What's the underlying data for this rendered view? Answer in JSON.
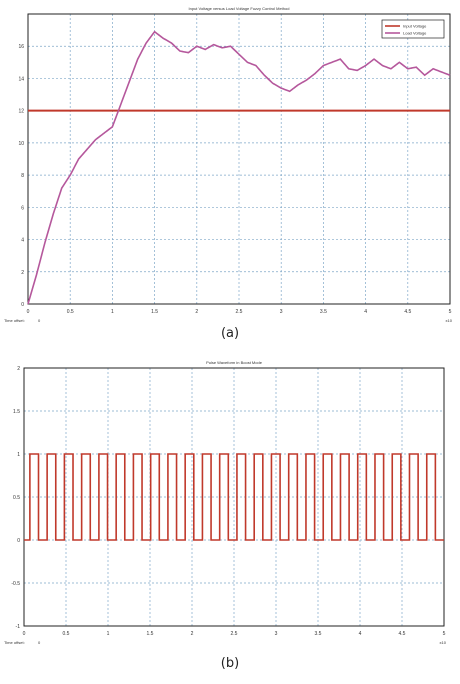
{
  "chart_data": [
    {
      "type": "line",
      "title": "Input Voltage versus Load Voltage Fuzzy Control Method",
      "xlim": [
        0,
        5
      ],
      "ylim": [
        0,
        18
      ],
      "x_exponent_label": "x10",
      "x_ticks": [
        "0",
        "0.5",
        "1",
        "1.5",
        "2",
        "2.5",
        "3",
        "3.5",
        "4",
        "4.5",
        "5"
      ],
      "y_ticks": [
        "0",
        "2",
        "4",
        "6",
        "8",
        "10",
        "12",
        "14",
        "16"
      ],
      "time_offset_label": "Time offset:",
      "time_offset_value": "0",
      "grid": true,
      "legend_position": "top-right",
      "series": [
        {
          "name": "Input Voltage",
          "color": "#c0392b",
          "x": [
            0,
            5
          ],
          "y": [
            12,
            12
          ]
        },
        {
          "name": "Load Voltage",
          "color": "#b5589c",
          "x": [
            0,
            0.1,
            0.2,
            0.3,
            0.4,
            0.5,
            0.6,
            0.7,
            0.8,
            0.9,
            1.0,
            1.1,
            1.2,
            1.3,
            1.4,
            1.5,
            1.6,
            1.7,
            1.8,
            1.9,
            2.0,
            2.1,
            2.2,
            2.3,
            2.4,
            2.5,
            2.6,
            2.7,
            2.8,
            2.9,
            3.0,
            3.1,
            3.2,
            3.3,
            3.4,
            3.5,
            3.6,
            3.7,
            3.8,
            3.9,
            4.0,
            4.1,
            4.2,
            4.3,
            4.4,
            4.5,
            4.6,
            4.7,
            4.8,
            4.9,
            5.0
          ],
          "y": [
            0,
            1.8,
            3.8,
            5.6,
            7.2,
            8.0,
            9.0,
            9.6,
            10.2,
            10.6,
            11.0,
            12.4,
            13.8,
            15.2,
            16.2,
            16.9,
            16.5,
            16.2,
            15.7,
            15.6,
            16.0,
            15.8,
            16.1,
            15.9,
            16.0,
            15.5,
            15.0,
            14.8,
            14.2,
            13.7,
            13.4,
            13.2,
            13.6,
            13.9,
            14.3,
            14.8,
            15.0,
            15.2,
            14.6,
            14.5,
            14.8,
            15.2,
            14.8,
            14.6,
            15.0,
            14.6,
            14.7,
            14.2,
            14.6,
            14.4,
            14.2
          ]
        }
      ]
    },
    {
      "type": "line",
      "title": "Pulse Waveform in Boost Mode",
      "xlim": [
        0,
        5
      ],
      "ylim": [
        -1,
        2
      ],
      "x_exponent_label": "x10",
      "x_ticks": [
        "0",
        "0.5",
        "1",
        "1.5",
        "2",
        "2.5",
        "3",
        "3.5",
        "4",
        "4.5",
        "5"
      ],
      "y_ticks": [
        "-1",
        "-0.5",
        "0",
        "0.5",
        "1",
        "1.5",
        "2"
      ],
      "time_offset_label": "Time offset:",
      "time_offset_value": "0",
      "grid": true,
      "series": [
        {
          "color": "#c0392b",
          "waveform": "square",
          "low": 0,
          "high": 1,
          "cycles": 24,
          "duty": 0.5,
          "x_start": 0.07,
          "x_end": 5
        }
      ]
    }
  ],
  "captions": {
    "a": "(a)",
    "b": "(b)"
  }
}
